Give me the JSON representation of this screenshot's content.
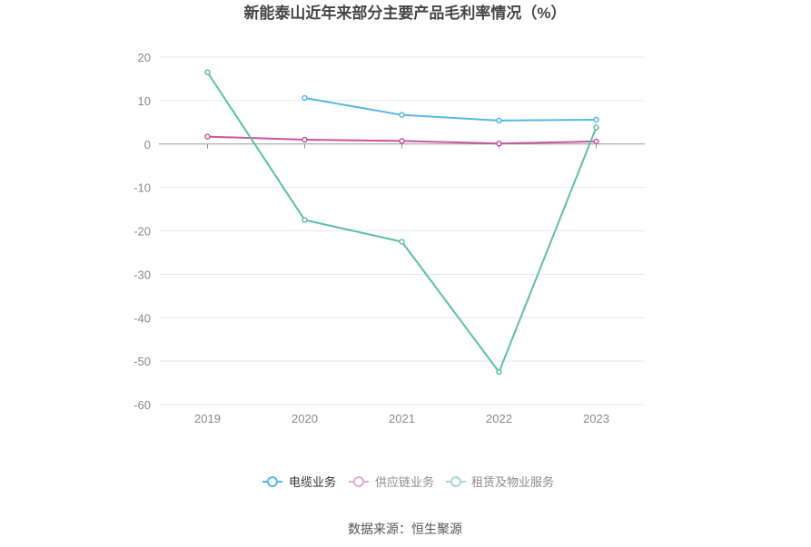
{
  "chart_data": {
    "type": "line",
    "title": "新能泰山近年来部分主要产品毛利率情况（%）",
    "categories": [
      "2019",
      "2020",
      "2021",
      "2022",
      "2023"
    ],
    "ylim": [
      -60,
      20
    ],
    "yticks": [
      20,
      10,
      0,
      -10,
      -20,
      -30,
      -40,
      -50,
      -60
    ],
    "grid": true,
    "legend_position": "bottom",
    "series": [
      {
        "name": "电缆业务",
        "values": [
          null,
          10.6,
          6.7,
          5.4,
          5.6
        ],
        "color": "#55b8ea"
      },
      {
        "name": "供应链业务",
        "values": [
          1.7,
          1.0,
          0.7,
          0.1,
          0.6
        ],
        "color": "#c8559f"
      },
      {
        "name": "租赁及物业服务",
        "values": [
          16.5,
          -17.5,
          -22.5,
          -52.5,
          3.8
        ],
        "color": "#5dbfa9"
      }
    ]
  },
  "legend": {
    "active_text_color": "#333333",
    "inactive_text_color": "#8c8c8c",
    "icon_colors": [
      "#55b8ea",
      "#e8a9d0",
      "#9fd9cb"
    ]
  },
  "source": "数据来源：恒生聚源"
}
